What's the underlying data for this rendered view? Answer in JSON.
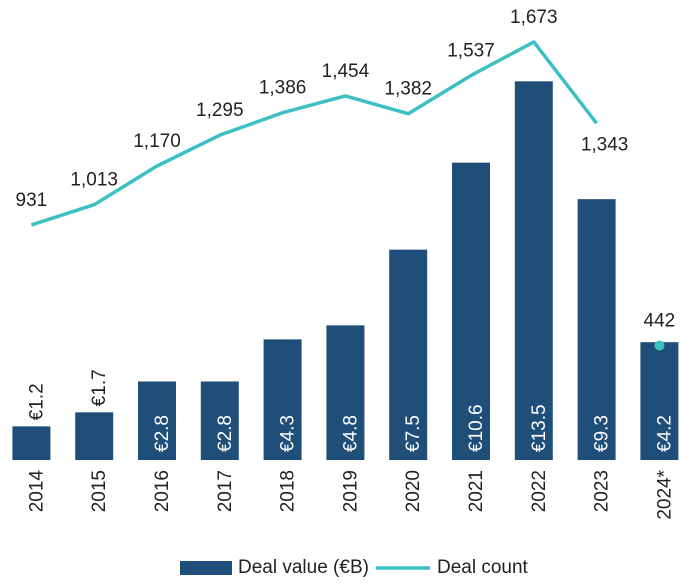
{
  "chart_data": {
    "type": "bar_line",
    "categories": [
      "2014",
      "2015",
      "2016",
      "2017",
      "2018",
      "2019",
      "2020",
      "2021",
      "2022",
      "2023",
      "2024*"
    ],
    "series": [
      {
        "name": "Deal value (€B)",
        "type": "bar",
        "color": "#1f4e79",
        "values": [
          1.2,
          1.7,
          2.8,
          2.8,
          4.3,
          4.8,
          7.5,
          10.6,
          13.5,
          9.3,
          4.2
        ],
        "value_labels": [
          "€1.2",
          "€1.7",
          "€2.8",
          "€2.8",
          "€4.3",
          "€4.8",
          "€7.5",
          "€10.6",
          "€13.5",
          "€9.3",
          "€4.2"
        ]
      },
      {
        "name": "Deal count",
        "type": "line",
        "axis": "y2",
        "color": "#3cc0c4",
        "point_only": [
          10
        ],
        "values": [
          931,
          1013,
          1170,
          1295,
          1386,
          1454,
          1382,
          1537,
          1673,
          1343,
          442
        ],
        "value_labels": [
          "931",
          "1,013",
          "1,170",
          "1,295",
          "1,386",
          "1,454",
          "1,382",
          "1,537",
          "1,673",
          "1,343",
          "442"
        ]
      }
    ],
    "ylim": [
      0,
      16.4
    ],
    "y2lim": [
      -22,
      1843
    ],
    "legend": "bottom"
  }
}
